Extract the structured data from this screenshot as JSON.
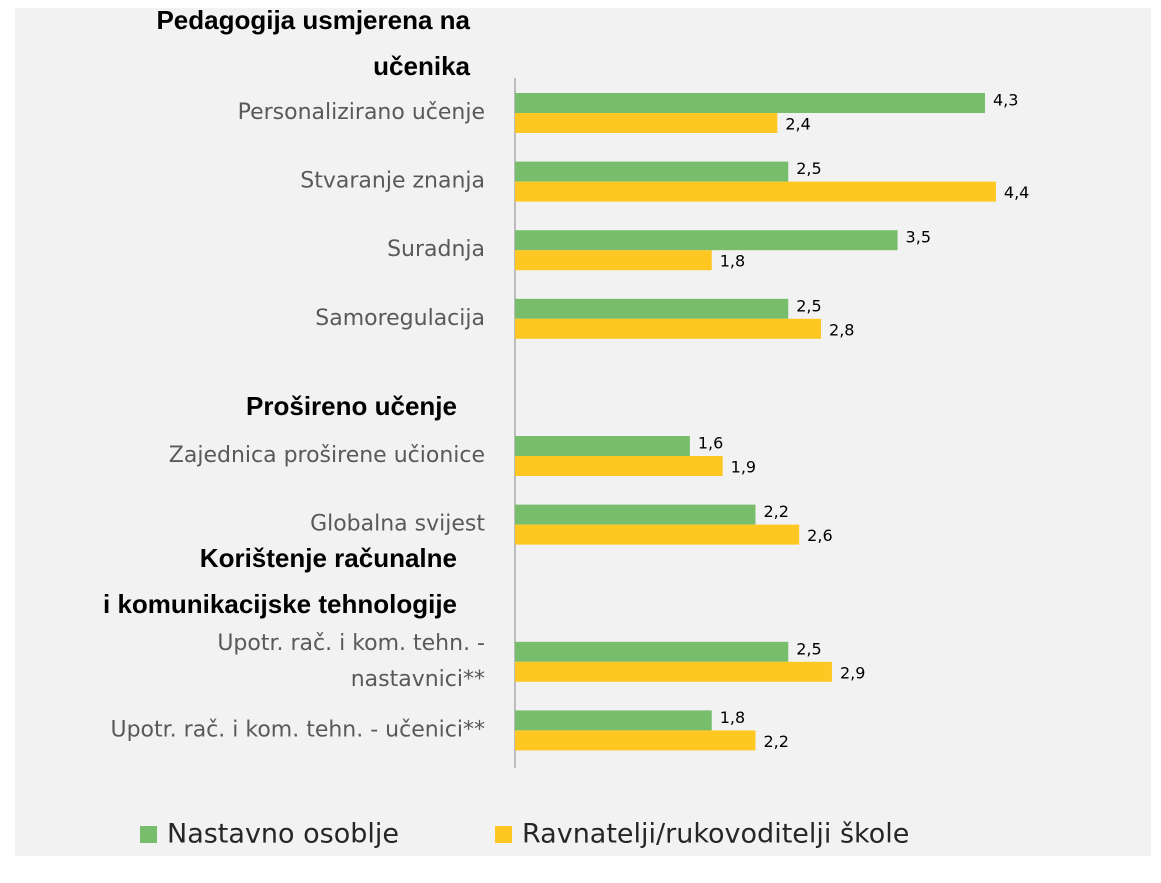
{
  "chart_data": {
    "type": "bar",
    "orientation": "horizontal",
    "group_headings": [
      "Pedagogija usmjerena na\nučenika",
      "Prošireno učenje",
      "Korištenje računalne\ni komunikacijske tehnologije"
    ],
    "categories": [
      "Personalizirano učenje",
      "Stvaranje znanja",
      "Suradnja",
      "Samoregulacija",
      null,
      "Zajednica proširene učionice",
      "Globalna svijest",
      null,
      "Upotr. rač. i kom. tehn. -\nnastavnici**",
      "Upotr. rač. i kom. tehn. - učenici**"
    ],
    "series": [
      {
        "name": "Nastavno osoblje",
        "color": "#77bd6b",
        "values": [
          4.3,
          2.5,
          3.5,
          2.5,
          null,
          1.6,
          2.2,
          null,
          2.5,
          1.8
        ],
        "value_labels": [
          "4,3",
          "2,5",
          "3,5",
          "2,5",
          null,
          "1,6",
          "2,2",
          null,
          "2,5",
          "1,8"
        ]
      },
      {
        "name": "Ravnatelji/rukovoditelji škole",
        "color": "#ffc722",
        "values": [
          2.4,
          4.4,
          1.8,
          2.8,
          null,
          1.9,
          2.6,
          null,
          2.9,
          2.2
        ],
        "value_labels": [
          "2,4",
          "4,4",
          "1,8",
          "2,8",
          null,
          "1,9",
          "2,6",
          null,
          "2,9",
          "2,2"
        ]
      }
    ],
    "xlim": [
      0,
      5
    ],
    "legend": "bottom"
  }
}
